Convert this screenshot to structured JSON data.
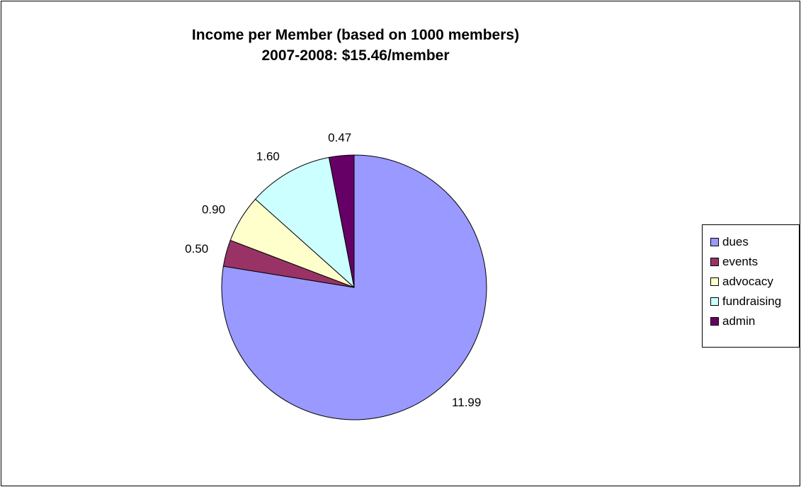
{
  "chart_data": {
    "type": "pie",
    "title_lines": [
      "Income per Member (based on 1000 members)",
      "2007-2008: $15.46/member"
    ],
    "slices": [
      {
        "label": "dues",
        "value": 11.99,
        "value_label": "11.99",
        "color": "#9999FF"
      },
      {
        "label": "events",
        "value": 0.5,
        "value_label": "0.50",
        "color": "#993366"
      },
      {
        "label": "advocacy",
        "value": 0.9,
        "value_label": "0.90",
        "color": "#FFFFCC"
      },
      {
        "label": "fundraising",
        "value": 1.6,
        "value_label": "1.60",
        "color": "#CCFFFF"
      },
      {
        "label": "admin",
        "value": 0.47,
        "value_label": "0.47",
        "color": "#660066"
      }
    ],
    "start_angle": "12 o'clock",
    "direction": "clockwise",
    "legend_position": "right"
  }
}
